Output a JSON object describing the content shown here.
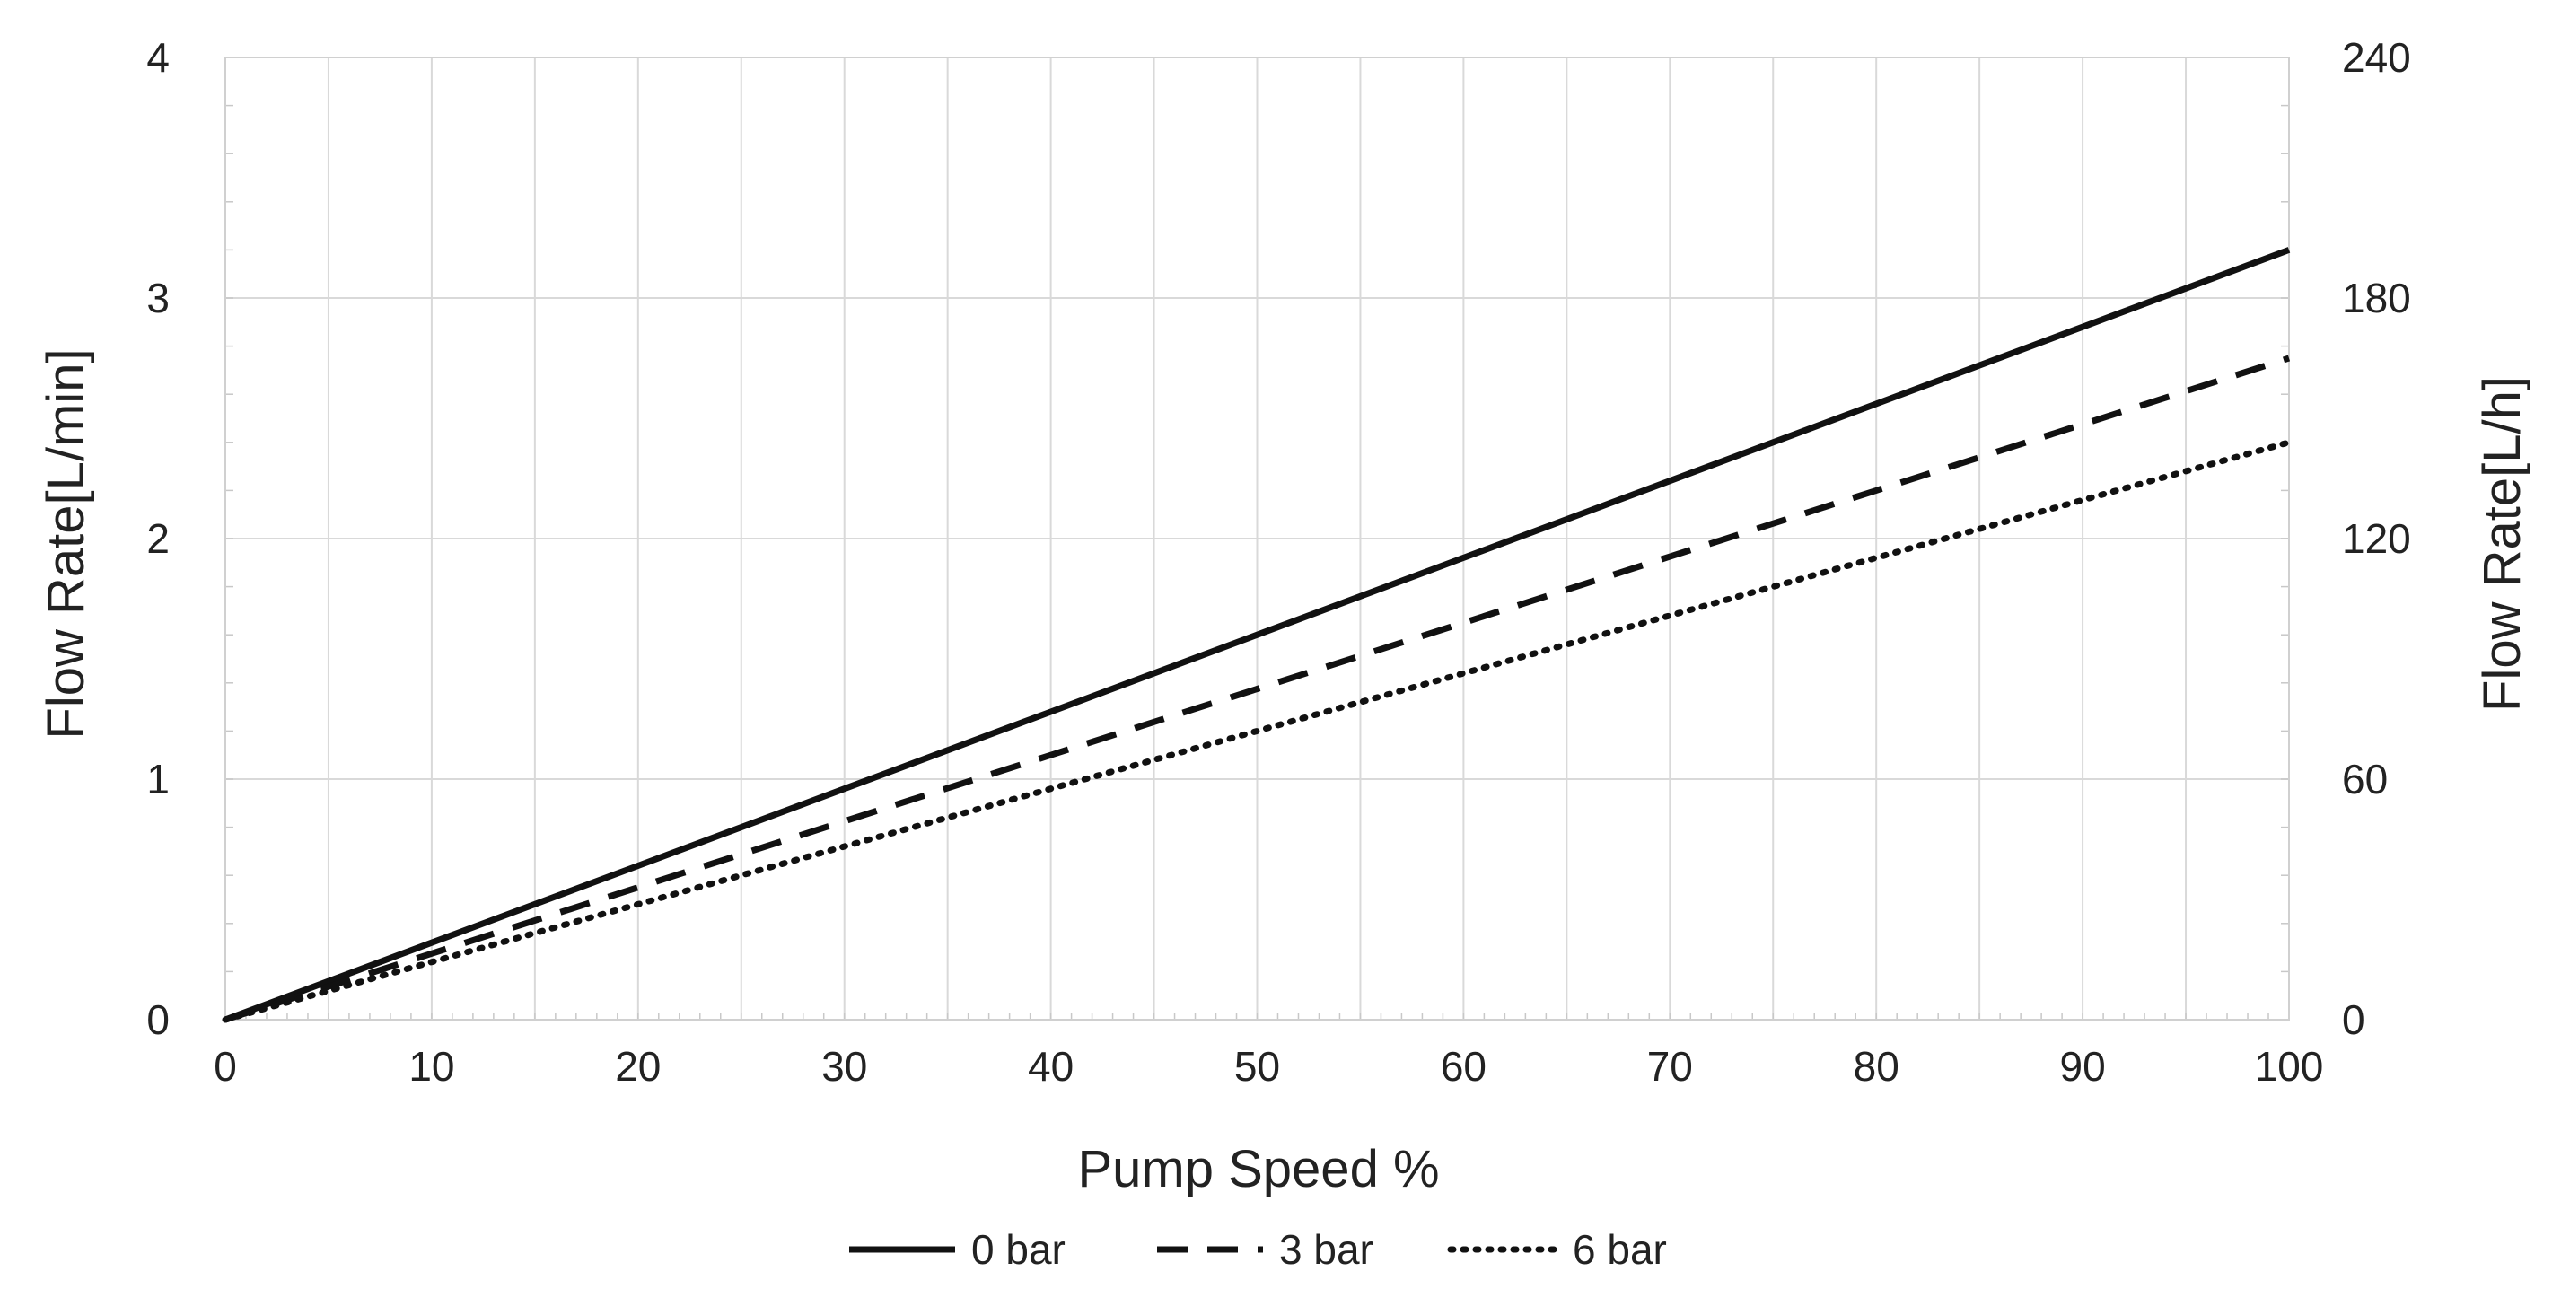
{
  "chart_data": {
    "type": "line",
    "xlabel": "Pump Speed %",
    "ylabel": "Flow Rate[L/min]",
    "ylabel_right": "Flow Rate[L/h]",
    "xlim": [
      0,
      100
    ],
    "ylim": [
      0,
      4
    ],
    "ylim_right": [
      0,
      240
    ],
    "x_ticks": [
      "0",
      "10",
      "20",
      "30",
      "40",
      "50",
      "60",
      "70",
      "80",
      "90",
      "100"
    ],
    "y_ticks": [
      "0",
      "1",
      "2",
      "3",
      "4"
    ],
    "y_ticks_right": [
      "0",
      "60",
      "120",
      "180",
      "240"
    ],
    "grid": true,
    "legend_position": "bottom",
    "series": [
      {
        "name": "0 bar",
        "style": "solid",
        "color": "#111111",
        "x": [
          0,
          10,
          20,
          30,
          40,
          50,
          60,
          70,
          80,
          90,
          100
        ],
        "y": [
          0,
          0.32,
          0.64,
          0.96,
          1.28,
          1.6,
          1.92,
          2.24,
          2.56,
          2.88,
          3.2
        ]
      },
      {
        "name": "3 bar",
        "style": "dashed",
        "color": "#111111",
        "x": [
          0,
          10,
          20,
          30,
          40,
          50,
          60,
          70,
          80,
          90,
          100
        ],
        "y": [
          0,
          0.275,
          0.55,
          0.825,
          1.1,
          1.375,
          1.65,
          1.925,
          2.2,
          2.475,
          2.75
        ]
      },
      {
        "name": "6 bar",
        "style": "dotted",
        "color": "#111111",
        "x": [
          0,
          10,
          20,
          30,
          40,
          50,
          60,
          70,
          80,
          90,
          100
        ],
        "y": [
          0,
          0.24,
          0.48,
          0.72,
          0.96,
          1.2,
          1.44,
          1.68,
          1.92,
          2.16,
          2.4
        ]
      }
    ]
  }
}
